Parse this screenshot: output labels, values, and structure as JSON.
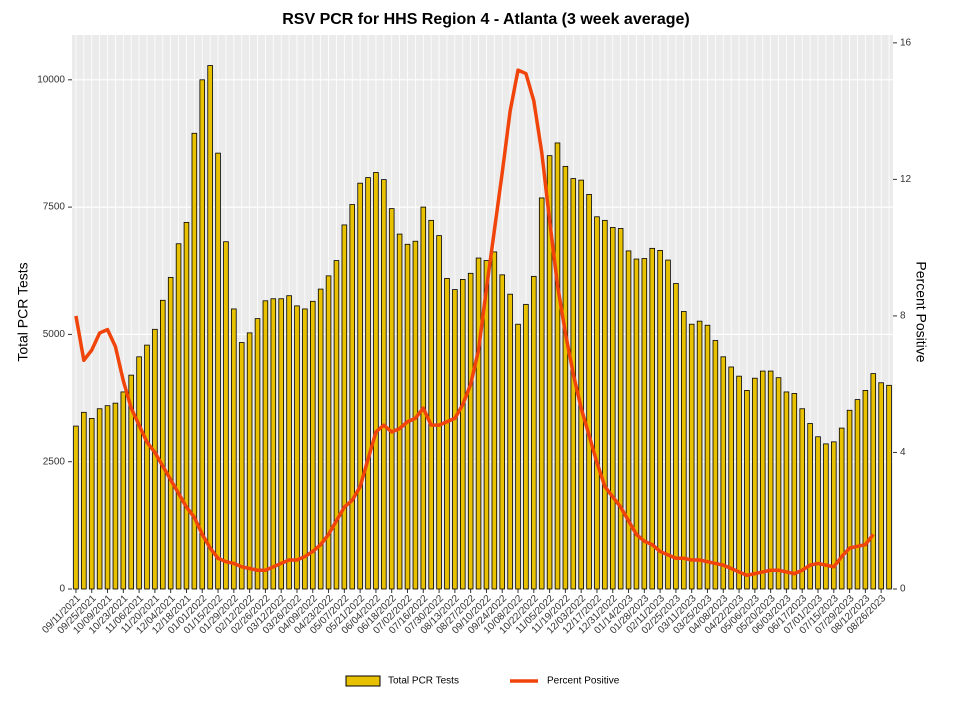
{
  "chart_data": {
    "type": "bar",
    "title": "RSV PCR for HHS Region 4 - Atlanta (3 week average)",
    "y_label": "Total PCR Tests",
    "y2_label": "Percent Positive",
    "categories": [
      "09/11/2021",
      null,
      "09/25/2021",
      null,
      "10/09/2021",
      null,
      "10/23/2021",
      null,
      "11/06/2021",
      null,
      "11/20/2021",
      null,
      "12/04/2021",
      null,
      "12/18/2021",
      null,
      "01/01/2022",
      null,
      "01/15/2022",
      null,
      "01/29/2022",
      null,
      "02/12/2022",
      null,
      "02/26/2022",
      null,
      "03/12/2022",
      null,
      "03/26/2022",
      null,
      "04/09/2022",
      null,
      "04/23/2022",
      null,
      "05/07/2022",
      null,
      "05/21/2022",
      null,
      "06/04/2022",
      null,
      "06/18/2022",
      null,
      "07/02/2022",
      null,
      "07/16/2022",
      null,
      "07/30/2022",
      null,
      "08/13/2022",
      null,
      "08/27/2022",
      null,
      "09/10/2022",
      null,
      "09/24/2022",
      null,
      "10/08/2022",
      null,
      "10/22/2022",
      null,
      "11/05/2022",
      null,
      "11/19/2022",
      null,
      "12/03/2022",
      null,
      "12/17/2022",
      null,
      "12/31/2022",
      null,
      "01/14/2023",
      null,
      "01/28/2023",
      null,
      "02/11/2023",
      null,
      "02/25/2023",
      null,
      "03/11/2023",
      null,
      "03/25/2023",
      null,
      "04/08/2023",
      null,
      "04/22/2023",
      null,
      "05/06/2023",
      null,
      "05/20/2023",
      null,
      "06/03/2023",
      null,
      "06/17/2023",
      null,
      "07/01/2023",
      null,
      "07/15/2023",
      null,
      "07/29/2023",
      null,
      "08/12/2023",
      null,
      "08/26/2023",
      null
    ],
    "series": [
      {
        "name": "Total PCR Tests",
        "type": "bar",
        "color": "#e8c100",
        "values": [
          3200,
          3470,
          3350,
          3540,
          3600,
          3650,
          3870,
          4200,
          4560,
          4790,
          5100,
          5670,
          6120,
          6780,
          7200,
          8950,
          10000,
          10280,
          8560,
          6820,
          5500,
          4840,
          5030,
          5310,
          5660,
          5700,
          5700,
          5760,
          5560,
          5500,
          5650,
          5890,
          6150,
          6450,
          7150,
          7550,
          7970,
          8080,
          8180,
          8040,
          7470,
          6970,
          6770,
          6830,
          7500,
          7240,
          6940,
          6100,
          5880,
          6080,
          6200,
          6500,
          6450,
          6620,
          6170,
          5790,
          5200,
          5590,
          6140,
          7680,
          8510,
          8760,
          8300,
          8060,
          8030,
          7750,
          7310,
          7240,
          7100,
          7080,
          6640,
          6480,
          6490,
          6690,
          6650,
          6460,
          6000,
          5450,
          5200,
          5260,
          5180,
          4880,
          4560,
          4360,
          4180,
          3900,
          4140,
          4280,
          4280,
          4150,
          3870,
          3840,
          3540,
          3250,
          2990,
          2850,
          2890,
          3160,
          3510,
          3720,
          3900,
          4230,
          4050,
          4000
        ]
      },
      {
        "name": "Percent Positive",
        "type": "line",
        "axis": "y2",
        "color": "#f0440a",
        "values": [
          8.0,
          6.7,
          7.0,
          7.5,
          7.6,
          7.1,
          6.1,
          5.3,
          4.8,
          4.3,
          4.0,
          3.6,
          3.2,
          2.8,
          2.4,
          2.1,
          1.6,
          1.2,
          0.9,
          0.8,
          0.75,
          0.65,
          0.6,
          0.55,
          0.55,
          0.65,
          0.75,
          0.85,
          0.85,
          0.95,
          1.1,
          1.3,
          1.6,
          2.0,
          2.4,
          2.6,
          3.0,
          3.8,
          4.6,
          4.8,
          4.6,
          4.7,
          4.9,
          5.0,
          5.3,
          4.8,
          4.8,
          4.9,
          5.0,
          5.4,
          6.0,
          7.0,
          8.8,
          10.5,
          12.2,
          14.0,
          15.2,
          15.1,
          14.3,
          12.8,
          10.8,
          8.9,
          7.5,
          6.3,
          5.3,
          4.5,
          3.7,
          3.0,
          2.7,
          2.4,
          2.0,
          1.6,
          1.4,
          1.3,
          1.1,
          1.0,
          0.9,
          0.9,
          0.85,
          0.85,
          0.8,
          0.75,
          0.7,
          0.6,
          0.5,
          0.4,
          0.45,
          0.5,
          0.55,
          0.55,
          0.5,
          0.45,
          0.55,
          0.7,
          0.75,
          0.7,
          0.65,
          0.95,
          1.2,
          1.25,
          1.3,
          1.6,
          null,
          null
        ]
      }
    ],
    "ylim": [
      0,
      10880
    ],
    "yticks": [
      0,
      2500,
      5000,
      7500,
      10000
    ],
    "y2lim": [
      0,
      16.23
    ],
    "y2ticks": [
      0,
      4,
      8,
      12,
      16
    ],
    "grid": true,
    "legend": "bottom"
  }
}
